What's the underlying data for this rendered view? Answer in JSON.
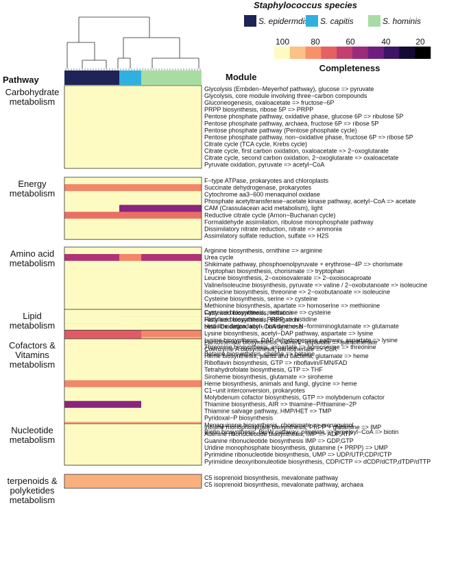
{
  "chart_data": {
    "type": "heatmap",
    "legend": {
      "species_title": "Staphylococcus species",
      "species": [
        {
          "name": "S. epidermdis",
          "color": "#1e2456"
        },
        {
          "name": "S. capitis",
          "color": "#2fb0e0"
        },
        {
          "name": "S. hominis",
          "color": "#a9dca2"
        }
      ],
      "completeness_title": "Completeness",
      "completeness_ticks": [
        "100",
        "80",
        "60",
        "40",
        "20"
      ],
      "completeness_colors": [
        "#fdfbc2",
        "#fbc187",
        "#f7916a",
        "#e65f62",
        "#c43e6e",
        "#9b2a7c",
        "#6f1e80",
        "#3d1466",
        "#150a34",
        "#000000"
      ]
    },
    "column_header": "Pathway",
    "row_header": "Module",
    "column_groups": [
      {
        "species": "S. epidermdis",
        "count": 20
      },
      {
        "species": "S. capitis",
        "count": 8
      },
      {
        "species": "S. hominis",
        "count": 22
      }
    ],
    "groups": [
      {
        "pathway": "Carbohydrate metabolism",
        "modules": [
          {
            "name": "Glycolysis (Embden−Meyerhof pathway), glucose => pyruvate",
            "ep": 100,
            "ca": 100,
            "ho": 100
          },
          {
            "name": "Glycolysis, core module involving three−carbon compounds",
            "ep": 100,
            "ca": 100,
            "ho": 100
          },
          {
            "name": "Gluconeogenesis, oxaloacetate => fructose−6P",
            "ep": 100,
            "ca": 100,
            "ho": 100
          },
          {
            "name": "PRPP biosynthesis, ribose 5P => PRPP",
            "ep": 100,
            "ca": 100,
            "ho": 100
          },
          {
            "name": "Pentose phosphate pathway, oxidative phase, glucose 6P => ribulose 5P",
            "ep": 100,
            "ca": 100,
            "ho": 100
          },
          {
            "name": "Pentose phosphate pathway, archaea, fructose 6P => ribose 5P",
            "ep": 100,
            "ca": 100,
            "ho": 100
          },
          {
            "name": "Pentose phosphate pathway (Pentose phosphate cycle)",
            "ep": 100,
            "ca": 100,
            "ho": 100
          },
          {
            "name": "Pentose phosphate pathway, non−oxidative phase, fructose 6P => ribose 5P",
            "ep": 100,
            "ca": 100,
            "ho": 100
          },
          {
            "name": "Citrate cycle (TCA cycle, Krebs cycle)",
            "ep": 100,
            "ca": 100,
            "ho": 100
          },
          {
            "name": "Citrate cycle, first carbon oxidation, oxaloacetate => 2−oxoglutarate",
            "ep": 100,
            "ca": 100,
            "ho": 100
          },
          {
            "name": "Citrate cycle, second carbon oxidation, 2−oxoglutarate => oxaloacetate",
            "ep": 100,
            "ca": 100,
            "ho": 100
          },
          {
            "name": "Pyruvate oxidation, pyruvate => acetyl−CoA",
            "ep": 100,
            "ca": 100,
            "ho": 100
          }
        ]
      },
      {
        "pathway": "Energy metabolism",
        "modules": [
          {
            "name": "F−type ATPase, prokaryotes and chloroplasts",
            "ep": 100,
            "ca": 100,
            "ho": 100
          },
          {
            "name": "Succinate dehydrogenase, prokaryotes",
            "ep": 75,
            "ca": 75,
            "ho": 75
          },
          {
            "name": "Cytochrome aa3−600 menaquinol oxidase",
            "ep": 100,
            "ca": 100,
            "ho": 100
          },
          {
            "name": "Phosphate acetyltransferase−acetate kinase pathway, acetyl−CoA => acetate",
            "ep": 100,
            "ca": 100,
            "ho": 100
          },
          {
            "name": "CAM (Crassulacean acid metabolism), light",
            "ep": 100,
            "ca": 40,
            "ho": 40
          },
          {
            "name": "Reductive citrate cycle (Arnon−Buchanan cycle)",
            "ep": 70,
            "ca": 70,
            "ho": 70
          },
          {
            "name": "Formaldehyde assimilation, ribulose monophosphate pathway",
            "ep": 100,
            "ca": 100,
            "ho": 100
          },
          {
            "name": "Dissimilatory nitrate reduction, nitrate => ammonia",
            "ep": 100,
            "ca": 100,
            "ho": 100
          },
          {
            "name": "Assimilatory sulfate reduction, sulfate => H2S",
            "ep": 100,
            "ca": 100,
            "ho": 100
          }
        ]
      },
      {
        "pathway": "Amino acid metabolism",
        "modules": [
          {
            "name": "Arginine biosynthesis, ornithine => arginine",
            "ep": 100,
            "ca": 100,
            "ho": 100
          },
          {
            "name": "Urea cycle",
            "ep": 50,
            "ca": 75,
            "ho": 50
          },
          {
            "name": "Shikimate pathway, phosphoenolpyruvate + erythrose−4P => chorismate",
            "ep": 100,
            "ca": 100,
            "ho": 100
          },
          {
            "name": "Tryptophan biosynthesis, chorismate => tryptophan",
            "ep": 100,
            "ca": 100,
            "ho": 100
          },
          {
            "name": "Leucine biosynthesis, 2−oxoisovalerate => 2−oxoisocaproate",
            "ep": 100,
            "ca": 100,
            "ho": 100
          },
          {
            "name": "Valine/isoleucine biosynthesis, pyruvate => valine / 2−oxobutanoate => isoleucine",
            "ep": 100,
            "ca": 100,
            "ho": 100
          },
          {
            "name": "Isoleucine biosynthesis, threonine => 2−oxobutanoate => isoleucine",
            "ep": 100,
            "ca": 100,
            "ho": 100
          },
          {
            "name": "Cysteine biosynthesis, serine => cysteine",
            "ep": 100,
            "ca": 100,
            "ho": 100
          },
          {
            "name": "Methionine biosynthesis, apartate => homoserine => methionine",
            "ep": 100,
            "ca": 100,
            "ho": 100
          },
          {
            "name": "Cysteine biosynthesis, methionine => cysteine",
            "ep": 85,
            "ca": 75,
            "ho": 75
          },
          {
            "name": "Histidine biosynthesis, PRPP => histidine",
            "ep": 100,
            "ca": 0,
            "ho": 0
          },
          {
            "name": "Histidine degradation, histidine => N−formiminoglutamate => glutamate",
            "ep": 10,
            "ca": 100,
            "ho": 20
          },
          {
            "name": "Lysine biosynthesis, acetyl−DAP pathway, aspartate => lysine",
            "ep": 65,
            "ca": 65,
            "ho": 75
          },
          {
            "name": "Lysine biosynthesis, DAP dehydrogenase pathway, aspartate => lysine",
            "ep": 65,
            "ca": 65,
            "ho": 85
          },
          {
            "name": "Threonine biosynthesis, aspartate => homoserine => threonine",
            "ep": 100,
            "ca": 100,
            "ho": 100
          },
          {
            "name": "Betaine biosynthesis, choline => betaine",
            "ep": 100,
            "ca": 100,
            "ho": 100
          }
        ]
      },
      {
        "pathway": "Lipid metabolism",
        "modules": [
          {
            "name": "Fatty acid biosynthesis, initiation",
            "ep": 100,
            "ca": 100,
            "ho": 100
          },
          {
            "name": "Fatty acid biosynthesis, elongation",
            "ep": 100,
            "ca": 100,
            "ho": 100
          },
          {
            "name": "beta−Oxidation, acyl−CoA synthesis",
            "ep": 100,
            "ca": 100,
            "ho": 100
          }
        ]
      },
      {
        "pathway": "Cofactors & Vitamins metabolism",
        "modules": [
          {
            "name": "Pantothenate biosynthesis, valine/L−aspartate => pantothenate",
            "ep": 100,
            "ca": 100,
            "ho": 100
          },
          {
            "name": "Coenzyme A biosynthesis, pantothenate => CoA",
            "ep": 100,
            "ca": 100,
            "ho": 100
          },
          {
            "name": "Heme biosynthesis, plants and bacteria, glutamate => heme",
            "ep": 100,
            "ca": 100,
            "ho": 100
          },
          {
            "name": "Riboflavin biosynthesis, GTP => riboflavin/FMN/FAD",
            "ep": 100,
            "ca": 100,
            "ho": 100
          },
          {
            "name": "Tetrahydrofolate biosynthesis, GTP => THF",
            "ep": 100,
            "ca": 100,
            "ho": 100
          },
          {
            "name": "Siroheme biosynthesis, glutamate => siroheme",
            "ep": 100,
            "ca": 100,
            "ho": 100
          },
          {
            "name": "Heme biosynthesis, animals and fungi, glycine => heme",
            "ep": 75,
            "ca": 75,
            "ho": 75
          },
          {
            "name": "C1−unit interconversion, prokaryotes",
            "ep": 100,
            "ca": 100,
            "ho": 100
          },
          {
            "name": "Molybdenum cofactor biosynthesis, GTP => molybdenum cofactor",
            "ep": 100,
            "ca": 100,
            "ho": 100
          },
          {
            "name": "Thiamine biosynthesis, AIR => thiamine−P/thiamine−2P",
            "ep": 40,
            "ca": 40,
            "ho": 100
          },
          {
            "name": "Thiamine salvage pathway, HMP/HET => TMP",
            "ep": 100,
            "ca": 100,
            "ho": 100
          },
          {
            "name": "Pyridoxal−P biosynthesis",
            "ep": 100,
            "ca": 100,
            "ho": 100
          },
          {
            "name": "Menaquinone biosynthesis, chorismate => menaquinol",
            "ep": 85,
            "ca": 85,
            "ho": 85
          },
          {
            "name": "Biotin biosynthesis, BioW pathway, pimelate => pimeloyl−CoA => biotin",
            "ep": 70,
            "ca": 35,
            "ho": 15
          }
        ]
      },
      {
        "pathway": "Nucleotide metabolism",
        "modules": [
          {
            "name": "Inosine monophosphate biosynthesis, PRPP + glutamine => IMP",
            "ep": 100,
            "ca": 100,
            "ho": 100
          },
          {
            "name": "Adenine ribonucleotide biosynthesis, IMP => ADP,ATP",
            "ep": 100,
            "ca": 100,
            "ho": 100
          },
          {
            "name": "Guanine ribonucleotide biosynthesis IMP => GDP,GTP",
            "ep": 100,
            "ca": 100,
            "ho": 100
          },
          {
            "name": "Uridine monophosphate biosynthesis, glutamine (+ PRPP) => UMP",
            "ep": 100,
            "ca": 100,
            "ho": 100
          },
          {
            "name": "Pyrimidine ribonucleotide biosynthesis, UMP => UDP/UTP,CDP/CTP",
            "ep": 100,
            "ca": 100,
            "ho": 100
          },
          {
            "name": "Pyrimidine deoxyribonuleotide biosynthesis, CDP/CTP => dCDP/dCTP,dTDP/dTTP",
            "ep": 100,
            "ca": 100,
            "ho": 100
          }
        ]
      },
      {
        "pathway": "terpenoids & polyketides metabolism",
        "modules": [
          {
            "name": "C5 isoprenoid biosynthesis, mevalonate pathway",
            "ep": 85,
            "ca": 85,
            "ho": 85
          },
          {
            "name": "C5 isoprenoid biosynthesis, mevalonate pathway, archaea",
            "ep": 85,
            "ca": 85,
            "ho": 85
          }
        ]
      }
    ]
  }
}
